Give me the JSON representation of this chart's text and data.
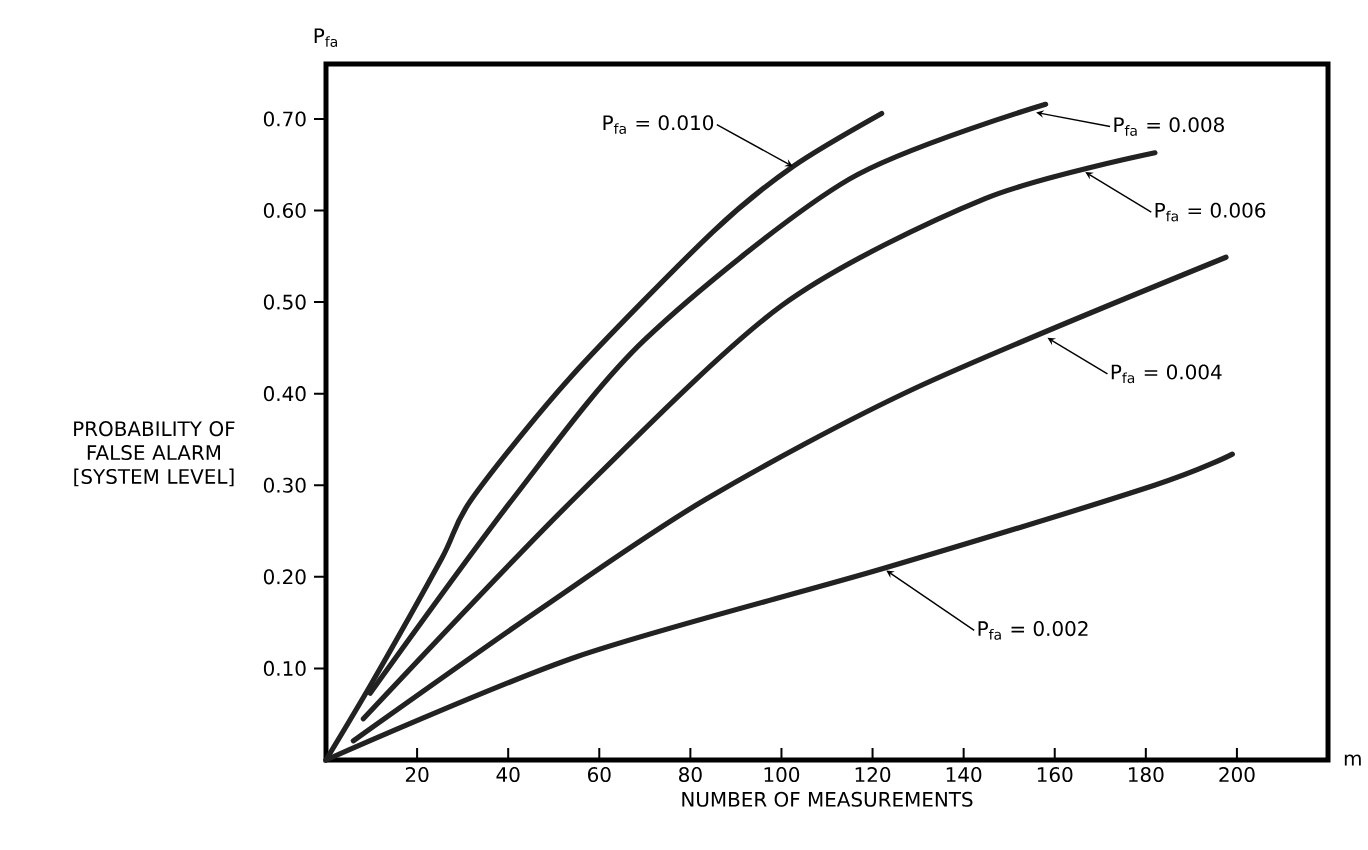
{
  "chart_data": {
    "type": "line",
    "xlabel": "NUMBER OF MEASUREMENTS",
    "ylabel": "PROBABILITY OF FALSE ALARM [SYSTEM LEVEL]",
    "xlim": [
      0,
      220
    ],
    "ylim": [
      0,
      0.76
    ],
    "xticks": [
      20,
      40,
      60,
      80,
      100,
      120,
      140,
      160,
      180,
      200
    ],
    "yticks": [
      {
        "value": 0.1,
        "label": "0.10"
      },
      {
        "value": 0.2,
        "label": "0.20"
      },
      {
        "value": 0.3,
        "label": "0.30"
      },
      {
        "value": 0.4,
        "label": "0.40"
      },
      {
        "value": 0.5,
        "label": "0.50"
      },
      {
        "value": 0.6,
        "label": "0.60"
      },
      {
        "value": 0.7,
        "label": "0.70"
      }
    ],
    "grid": false,
    "marker": "none",
    "line_style": "solid",
    "series": [
      {
        "color": "#222222",
        "x": [
          0,
          10.4,
          25.4,
          32,
          53.7,
          85,
          102.5,
          122
        ],
        "values": [
          0,
          0.087,
          0.22,
          0.285,
          0.418,
          0.577,
          0.648,
          0.706
        ]
      },
      {
        "color": "#222222",
        "x": [
          9.7,
          41,
          70,
          114.8,
          158
        ],
        "values": [
          0.073,
          0.285,
          0.459,
          0.634,
          0.716
        ]
      },
      {
        "color": "#222222",
        "x": [
          8.2,
          54.4,
          100,
          144.7,
          182
        ],
        "values": [
          0.045,
          0.285,
          0.496,
          0.613,
          0.663
        ]
      },
      {
        "color": "#222222",
        "x": [
          6,
          47.7,
          83.5,
          129.8,
          197.6
        ],
        "values": [
          0.021,
          0.167,
          0.285,
          0.407,
          0.549
        ]
      },
      {
        "color": "#222222",
        "x": [
          0,
          55.2,
          122.3,
          181.9,
          199
        ],
        "values": [
          0,
          0.113,
          0.209,
          0.3,
          0.334
        ]
      }
    ],
    "annotations": [
      "P$_{fa}$",
      "m",
      {
        "text": "P$_{fa}$ = 0.010",
        "x": 102.5,
        "y": 0.648
      },
      {
        "text": "P$_{fa}$ = 0.008",
        "x": 155.9,
        "y": 0.707
      },
      {
        "text": "P$_{fa}$ = 0.006",
        "x": 166.7,
        "y": 0.642
      },
      {
        "text": "P$_{fa}$ = 0.004",
        "x": 158.4,
        "y": 0.461
      },
      {
        "text": "P$_{fa}$ = 0.002",
        "x": 123,
        "y": 0.207
      }
    ]
  }
}
